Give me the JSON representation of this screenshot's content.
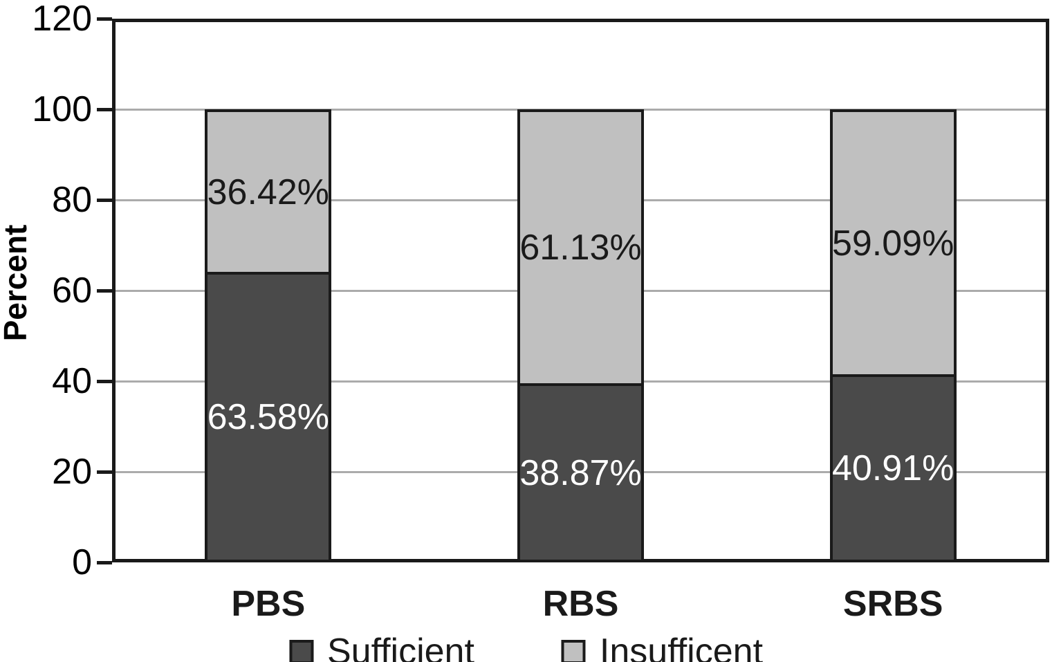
{
  "chart_data": {
    "type": "bar",
    "stacked": true,
    "title": "",
    "xlabel": "",
    "ylabel": "Percent",
    "ylim": [
      0,
      120
    ],
    "yticks": [
      0,
      20,
      40,
      60,
      80,
      100,
      120
    ],
    "grid": "horizontal gridlines at 20,40,60,80,100",
    "legend_position": "bottom",
    "categories": [
      "PBS",
      "RBS",
      "SRBS"
    ],
    "series": [
      {
        "name": "Sufficient",
        "color": "#4a4a4a",
        "label_color": "#ffffff",
        "values": [
          63.58,
          38.87,
          40.91
        ],
        "labels": [
          "63.58%",
          "38.87%",
          "40.91%"
        ]
      },
      {
        "name": "Insufficent",
        "color": "#c0c0c0",
        "label_color": "#1a1a1a",
        "values": [
          36.42,
          61.13,
          59.09
        ],
        "labels": [
          "36.42%",
          "61.13%",
          "59.09%"
        ]
      }
    ]
  },
  "colors": {
    "axis": "#1a1a1a",
    "gridline": "#ababab",
    "background": "#ffffff"
  }
}
